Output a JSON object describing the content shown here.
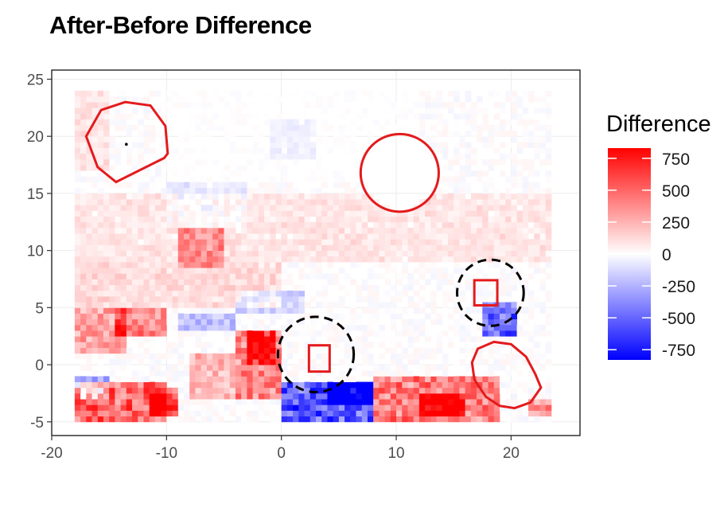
{
  "chart_data": {
    "type": "heatmap",
    "title": "After-Before Difference",
    "xlabel": "",
    "ylabel": "",
    "xlim": [
      -20,
      26
    ],
    "ylim": [
      -6.2,
      25.8
    ],
    "x_ticks": [
      -20,
      -10,
      0,
      10,
      20
    ],
    "y_ticks": [
      -5,
      0,
      5,
      10,
      15,
      20,
      25
    ],
    "grid": true,
    "cell_size": 0.5,
    "data_extent": {
      "x": [
        -18,
        23.5
      ],
      "y": [
        -5,
        24
      ]
    },
    "color_scale": {
      "name": "Difference",
      "min": -830,
      "max": 830,
      "breaks": [
        750,
        500,
        250,
        0,
        -250,
        -500,
        -750
      ],
      "low_color": "#0000ff",
      "mid_color": "#ffffff",
      "high_color": "#ff0000"
    },
    "regions": [
      {
        "x": [
          -18,
          -10
        ],
        "y": [
          -5,
          -1.5
        ],
        "value": 560
      },
      {
        "x": [
          -11.5,
          -9
        ],
        "y": [
          -4.5,
          -2
        ],
        "value": 620
      },
      {
        "x": [
          -14.5,
          -10
        ],
        "y": [
          2.5,
          5
        ],
        "value": 420
      },
      {
        "x": [
          -18,
          -13.5
        ],
        "y": [
          1,
          5
        ],
        "value": 330
      },
      {
        "x": [
          -9,
          -5
        ],
        "y": [
          8.5,
          12
        ],
        "value": 330
      },
      {
        "x": [
          -4,
          0
        ],
        "y": [
          -3,
          3
        ],
        "value": 440
      },
      {
        "x": [
          -3,
          -0.5
        ],
        "y": [
          0,
          3
        ],
        "value": 600
      },
      {
        "x": [
          -8,
          -4
        ],
        "y": [
          -3,
          1
        ],
        "value": 260
      },
      {
        "x": [
          8,
          19
        ],
        "y": [
          -5,
          -1
        ],
        "value": 480
      },
      {
        "x": [
          12,
          16
        ],
        "y": [
          -4.5,
          -2.5
        ],
        "value": 620
      },
      {
        "x": [
          21.5,
          23.5
        ],
        "y": [
          -4.5,
          -3
        ],
        "value": 420
      },
      {
        "x": [
          -18,
          0
        ],
        "y": [
          5,
          9
        ],
        "value": 130
      },
      {
        "x": [
          -18,
          23.5
        ],
        "y": [
          9,
          15
        ],
        "value": 90
      },
      {
        "x": [
          -18,
          -15
        ],
        "y": [
          17,
          24
        ],
        "value": 100
      },
      {
        "x": [
          0,
          8
        ],
        "y": [
          -5,
          -1.5
        ],
        "value": -620
      },
      {
        "x": [
          4,
          8
        ],
        "y": [
          -3.5,
          -1.5
        ],
        "value": -720
      },
      {
        "x": [
          17.5,
          20.5
        ],
        "y": [
          2.5,
          5.5
        ],
        "value": -560
      },
      {
        "x": [
          -18,
          -15
        ],
        "y": [
          -3,
          -1
        ],
        "value": -330
      },
      {
        "x": [
          -9,
          -4
        ],
        "y": [
          3,
          4.5
        ],
        "value": -230
      },
      {
        "x": [
          -4,
          2
        ],
        "y": [
          4.5,
          6.5
        ],
        "value": -170
      },
      {
        "x": [
          -1,
          3
        ],
        "y": [
          18,
          21.5
        ],
        "value": -110
      },
      {
        "x": [
          -10,
          -3
        ],
        "y": [
          12,
          16
        ],
        "value": -80
      }
    ],
    "annotations": [
      {
        "shape": "circle",
        "cx": 10.3,
        "cy": 16.8,
        "r": 3.4,
        "stroke": "#e41a1c",
        "dash": false
      },
      {
        "shape": "polygon",
        "stroke": "#e41a1c",
        "dash": false,
        "points": [
          [
            -10.2,
            18.1
          ],
          [
            -14.4,
            16
          ],
          [
            -16,
            17.3
          ],
          [
            -17,
            20
          ],
          [
            -15.7,
            22.3
          ],
          [
            -13.6,
            23
          ],
          [
            -11.4,
            22.7
          ],
          [
            -10.1,
            20.9
          ],
          [
            -9.9,
            18.5
          ]
        ]
      },
      {
        "shape": "point",
        "x": -13.5,
        "y": 19.3,
        "fill": "#000000"
      },
      {
        "shape": "polygon",
        "stroke": "#e41a1c",
        "dash": false,
        "points": [
          [
            18.5,
            2
          ],
          [
            20,
            1.8
          ],
          [
            21.3,
            0.7
          ],
          [
            22.1,
            -0.8
          ],
          [
            22.6,
            -2
          ],
          [
            21.7,
            -3.3
          ],
          [
            20.3,
            -3.8
          ],
          [
            19,
            -3.6
          ],
          [
            17.8,
            -2.8
          ],
          [
            16.8,
            -1.3
          ],
          [
            16.6,
            0.2
          ],
          [
            17.1,
            1.4
          ]
        ]
      },
      {
        "shape": "circle",
        "cx": 3.0,
        "cy": 0.9,
        "r": 3.3,
        "stroke": "#000000",
        "dash": true
      },
      {
        "shape": "circle",
        "cx": 18.2,
        "cy": 6.3,
        "r": 2.9,
        "stroke": "#000000",
        "dash": true
      },
      {
        "shape": "rect",
        "x": 2.4,
        "y": -0.6,
        "w": 1.8,
        "h": 2.3,
        "stroke": "#e41a1c"
      },
      {
        "shape": "rect",
        "x": 16.8,
        "y": 5.2,
        "w": 2.0,
        "h": 2.2,
        "stroke": "#e41a1c"
      }
    ]
  }
}
